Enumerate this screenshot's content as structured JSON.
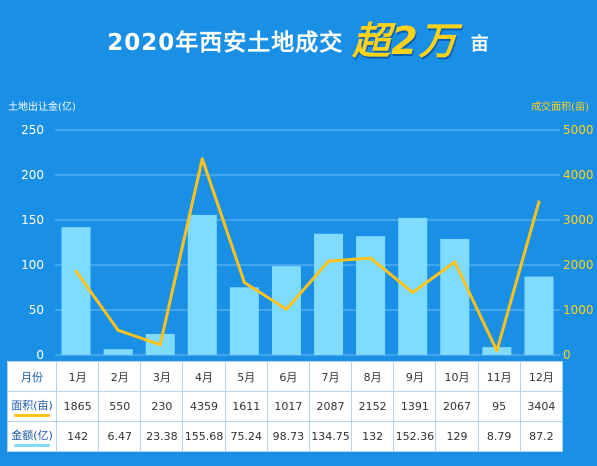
{
  "title": {
    "main": "2020年西安土地成交",
    "emphasis": "超2万",
    "unit": "亩"
  },
  "axis": {
    "left_title": "土地出让金(亿)",
    "right_title": "成交面积(亩)",
    "left_ticks": [
      "0",
      "50",
      "100",
      "150",
      "200",
      "250"
    ],
    "right_ticks": [
      "0",
      "1000",
      "2000",
      "3000",
      "4000",
      "5000"
    ]
  },
  "colors": {
    "background": "#1a8fe6",
    "bar": "#7fdcff",
    "line": "#ffc21a",
    "grid": "#6cbcf2"
  },
  "table": {
    "row_labels": {
      "month": "月份",
      "area": "面积(亩)",
      "amount": "金额(亿)"
    },
    "months": [
      "1月",
      "2月",
      "3月",
      "4月",
      "5月",
      "6月",
      "7月",
      "8月",
      "9月",
      "10月",
      "11月",
      "12月"
    ],
    "area": [
      "1865",
      "550",
      "230",
      "4359",
      "1611",
      "1017",
      "2087",
      "2152",
      "1391",
      "2067",
      "95",
      "3404"
    ],
    "amount": [
      "142",
      "6.47",
      "23.38",
      "155.68",
      "75.24",
      "98.73",
      "134.75",
      "132",
      "152.36",
      "129",
      "8.79",
      "87.2"
    ]
  },
  "chart_data": {
    "type": "bar",
    "categories": [
      "1月",
      "2月",
      "3月",
      "4月",
      "5月",
      "6月",
      "7月",
      "8月",
      "9月",
      "10月",
      "11月",
      "12月"
    ],
    "series": [
      {
        "name": "金额(亿)",
        "type": "bar",
        "axis": "left",
        "values": [
          142,
          6.47,
          23.38,
          155.68,
          75.24,
          98.73,
          134.75,
          132,
          152.36,
          129,
          8.79,
          87.2
        ]
      },
      {
        "name": "面积(亩)",
        "type": "line",
        "axis": "right",
        "values": [
          1865,
          550,
          230,
          4359,
          1611,
          1017,
          2087,
          2152,
          1391,
          2067,
          95,
          3404
        ]
      }
    ],
    "ylim_left": [
      0,
      250
    ],
    "ylim_right": [
      0,
      5000
    ],
    "grid": true
  }
}
